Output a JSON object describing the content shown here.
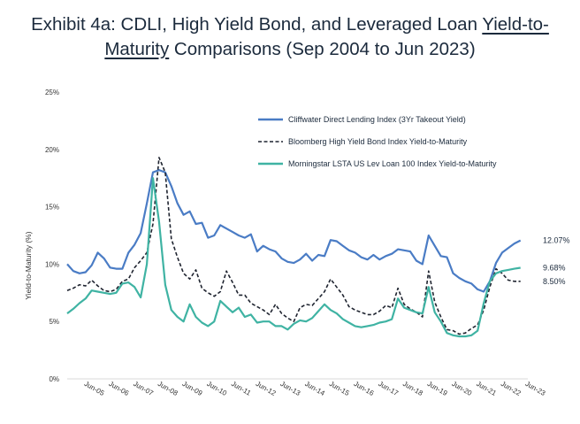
{
  "title": {
    "line1": "Exhibit 4a: CDLI, High Yield Bond, and Leveraged Loan ",
    "line1_link": "Yield-to-",
    "line2_link": "Maturity",
    "line2": " Comparisons (Sep 2004 to Jun 2023)"
  },
  "chart_data": {
    "type": "line",
    "title": "Exhibit 4a: CDLI, High Yield Bond, and Leveraged Loan Yield-to-Maturity Comparisons (Sep 2004 to Jun 2023)",
    "xlabel": "",
    "ylabel": "Yield-to-Maturity (%)",
    "ylim": [
      0,
      25
    ],
    "xlim": [
      2004.7,
      2023.5
    ],
    "yticks": [
      {
        "value": 0,
        "label": "0%"
      },
      {
        "value": 5,
        "label": "5%"
      },
      {
        "value": 10,
        "label": "10%"
      },
      {
        "value": 15,
        "label": "15%"
      },
      {
        "value": 20,
        "label": "20%"
      },
      {
        "value": 25,
        "label": "25%"
      }
    ],
    "xticks": [
      {
        "value": 2005.45,
        "label": "Jun-05"
      },
      {
        "value": 2006.45,
        "label": "Jun-06"
      },
      {
        "value": 2007.45,
        "label": "Jun-07"
      },
      {
        "value": 2008.45,
        "label": "Jun-08"
      },
      {
        "value": 2009.45,
        "label": "Jun-09"
      },
      {
        "value": 2010.45,
        "label": "Jun-10"
      },
      {
        "value": 2011.45,
        "label": "Jun-11"
      },
      {
        "value": 2012.45,
        "label": "Jun-12"
      },
      {
        "value": 2013.45,
        "label": "Jun-13"
      },
      {
        "value": 2014.45,
        "label": "Jun-14"
      },
      {
        "value": 2015.45,
        "label": "Jun-15"
      },
      {
        "value": 2016.45,
        "label": "Jun-16"
      },
      {
        "value": 2017.45,
        "label": "Jun-17"
      },
      {
        "value": 2018.45,
        "label": "Jun-18"
      },
      {
        "value": 2019.45,
        "label": "Jun-19"
      },
      {
        "value": 2020.45,
        "label": "Jun-20"
      },
      {
        "value": 2021.45,
        "label": "Jun-21"
      },
      {
        "value": 2022.45,
        "label": "Jun-22"
      },
      {
        "value": 2023.45,
        "label": "Jun-23"
      }
    ],
    "grid": false,
    "legend_position": "top-right",
    "series": [
      {
        "name": "Cliffwater Direct Lending Index (3Yr Takeout Yield)",
        "color": "#4a7cc5",
        "style": "solid",
        "end_label": "12.07%",
        "points": [
          [
            2004.7,
            10.0
          ],
          [
            2004.95,
            9.4
          ],
          [
            2005.2,
            9.2
          ],
          [
            2005.45,
            9.3
          ],
          [
            2005.7,
            9.9
          ],
          [
            2005.95,
            11.0
          ],
          [
            2006.2,
            10.5
          ],
          [
            2006.45,
            9.7
          ],
          [
            2006.7,
            9.6
          ],
          [
            2006.95,
            9.6
          ],
          [
            2007.2,
            11.0
          ],
          [
            2007.45,
            11.7
          ],
          [
            2007.7,
            12.7
          ],
          [
            2007.95,
            15.3
          ],
          [
            2008.2,
            18.0
          ],
          [
            2008.45,
            18.2
          ],
          [
            2008.7,
            18.0
          ],
          [
            2008.95,
            16.8
          ],
          [
            2009.2,
            15.3
          ],
          [
            2009.45,
            14.3
          ],
          [
            2009.7,
            14.6
          ],
          [
            2009.95,
            13.5
          ],
          [
            2010.2,
            13.6
          ],
          [
            2010.45,
            12.3
          ],
          [
            2010.7,
            12.5
          ],
          [
            2010.95,
            13.4
          ],
          [
            2011.2,
            13.1
          ],
          [
            2011.45,
            12.8
          ],
          [
            2011.7,
            12.5
          ],
          [
            2011.95,
            12.3
          ],
          [
            2012.2,
            12.6
          ],
          [
            2012.45,
            11.1
          ],
          [
            2012.7,
            11.6
          ],
          [
            2012.95,
            11.3
          ],
          [
            2013.2,
            11.1
          ],
          [
            2013.45,
            10.5
          ],
          [
            2013.7,
            10.2
          ],
          [
            2013.95,
            10.1
          ],
          [
            2014.2,
            10.4
          ],
          [
            2014.45,
            10.9
          ],
          [
            2014.7,
            10.3
          ],
          [
            2014.95,
            10.8
          ],
          [
            2015.2,
            10.7
          ],
          [
            2015.45,
            12.1
          ],
          [
            2015.7,
            12.0
          ],
          [
            2015.95,
            11.6
          ],
          [
            2016.2,
            11.2
          ],
          [
            2016.45,
            11.0
          ],
          [
            2016.7,
            10.6
          ],
          [
            2016.95,
            10.4
          ],
          [
            2017.2,
            10.8
          ],
          [
            2017.45,
            10.4
          ],
          [
            2017.7,
            10.7
          ],
          [
            2017.95,
            10.9
          ],
          [
            2018.2,
            11.3
          ],
          [
            2018.45,
            11.2
          ],
          [
            2018.7,
            11.1
          ],
          [
            2018.95,
            10.3
          ],
          [
            2019.2,
            10.0
          ],
          [
            2019.45,
            12.5
          ],
          [
            2019.7,
            11.6
          ],
          [
            2019.95,
            10.7
          ],
          [
            2020.2,
            10.6
          ],
          [
            2020.45,
            9.2
          ],
          [
            2020.7,
            8.8
          ],
          [
            2020.95,
            8.5
          ],
          [
            2021.2,
            8.3
          ],
          [
            2021.45,
            7.8
          ],
          [
            2021.7,
            7.6
          ],
          [
            2021.95,
            8.5
          ],
          [
            2022.2,
            10.1
          ],
          [
            2022.45,
            11.0
          ],
          [
            2022.7,
            11.4
          ],
          [
            2022.95,
            11.8
          ],
          [
            2023.2,
            12.07
          ]
        ]
      },
      {
        "name": "Bloomberg High Yield Bond Index Yield-to-Maturity",
        "color": "#1f2430",
        "style": "dashed",
        "end_label": "8.50%",
        "points": [
          [
            2004.7,
            7.7
          ],
          [
            2004.95,
            7.9
          ],
          [
            2005.2,
            8.2
          ],
          [
            2005.45,
            8.1
          ],
          [
            2005.7,
            8.6
          ],
          [
            2005.95,
            8.1
          ],
          [
            2006.2,
            7.7
          ],
          [
            2006.45,
            7.6
          ],
          [
            2006.7,
            7.8
          ],
          [
            2006.95,
            8.5
          ],
          [
            2007.2,
            8.7
          ],
          [
            2007.45,
            9.7
          ],
          [
            2007.7,
            10.3
          ],
          [
            2007.95,
            11.0
          ],
          [
            2008.2,
            13.5
          ],
          [
            2008.45,
            19.3
          ],
          [
            2008.7,
            18.0
          ],
          [
            2008.95,
            12.2
          ],
          [
            2009.2,
            10.6
          ],
          [
            2009.45,
            9.2
          ],
          [
            2009.7,
            8.7
          ],
          [
            2009.95,
            9.5
          ],
          [
            2010.2,
            7.9
          ],
          [
            2010.45,
            7.5
          ],
          [
            2010.7,
            7.2
          ],
          [
            2010.95,
            7.6
          ],
          [
            2011.2,
            9.4
          ],
          [
            2011.45,
            8.4
          ],
          [
            2011.7,
            7.3
          ],
          [
            2011.95,
            7.3
          ],
          [
            2012.2,
            6.6
          ],
          [
            2012.45,
            6.3
          ],
          [
            2012.7,
            6.0
          ],
          [
            2012.95,
            5.6
          ],
          [
            2013.2,
            6.5
          ],
          [
            2013.45,
            5.7
          ],
          [
            2013.7,
            5.3
          ],
          [
            2013.95,
            5.0
          ],
          [
            2014.2,
            6.2
          ],
          [
            2014.45,
            6.5
          ],
          [
            2014.7,
            6.4
          ],
          [
            2014.95,
            7.0
          ],
          [
            2015.2,
            7.6
          ],
          [
            2015.45,
            8.7
          ],
          [
            2015.7,
            8.0
          ],
          [
            2015.95,
            7.3
          ],
          [
            2016.2,
            6.3
          ],
          [
            2016.45,
            6.0
          ],
          [
            2016.7,
            5.8
          ],
          [
            2016.95,
            5.6
          ],
          [
            2017.2,
            5.6
          ],
          [
            2017.45,
            5.9
          ],
          [
            2017.7,
            6.4
          ],
          [
            2017.95,
            6.2
          ],
          [
            2018.2,
            7.9
          ],
          [
            2018.45,
            6.5
          ],
          [
            2018.7,
            6.1
          ],
          [
            2018.95,
            5.8
          ],
          [
            2019.2,
            5.4
          ],
          [
            2019.45,
            9.4
          ],
          [
            2019.7,
            6.7
          ],
          [
            2019.95,
            5.4
          ],
          [
            2020.2,
            4.3
          ],
          [
            2020.45,
            4.2
          ],
          [
            2020.7,
            3.9
          ],
          [
            2020.95,
            4.0
          ],
          [
            2021.2,
            4.4
          ],
          [
            2021.45,
            4.7
          ],
          [
            2021.7,
            6.0
          ],
          [
            2021.95,
            8.0
          ],
          [
            2022.2,
            9.6
          ],
          [
            2022.45,
            9.2
          ],
          [
            2022.7,
            8.6
          ],
          [
            2022.95,
            8.5
          ],
          [
            2023.2,
            8.5
          ]
        ]
      },
      {
        "name": "Morningstar LSTA US Lev Loan 100 Index Yield-to-Maturity",
        "color": "#3fb3a3",
        "style": "solid",
        "end_label": "9.68%",
        "points": [
          [
            2004.7,
            5.7
          ],
          [
            2004.95,
            6.1
          ],
          [
            2005.2,
            6.6
          ],
          [
            2005.45,
            7.0
          ],
          [
            2005.7,
            7.7
          ],
          [
            2005.95,
            7.6
          ],
          [
            2006.2,
            7.5
          ],
          [
            2006.45,
            7.4
          ],
          [
            2006.7,
            7.5
          ],
          [
            2006.95,
            8.3
          ],
          [
            2007.2,
            8.4
          ],
          [
            2007.45,
            8.0
          ],
          [
            2007.7,
            7.1
          ],
          [
            2007.95,
            10.0
          ],
          [
            2008.2,
            17.5
          ],
          [
            2008.45,
            13.7
          ],
          [
            2008.7,
            8.2
          ],
          [
            2008.95,
            6.0
          ],
          [
            2009.2,
            5.4
          ],
          [
            2009.45,
            5.0
          ],
          [
            2009.7,
            6.5
          ],
          [
            2009.95,
            5.4
          ],
          [
            2010.2,
            4.9
          ],
          [
            2010.45,
            4.6
          ],
          [
            2010.7,
            5.0
          ],
          [
            2010.95,
            6.8
          ],
          [
            2011.2,
            6.3
          ],
          [
            2011.45,
            5.8
          ],
          [
            2011.7,
            6.2
          ],
          [
            2011.95,
            5.4
          ],
          [
            2012.2,
            5.6
          ],
          [
            2012.45,
            4.9
          ],
          [
            2012.7,
            5.0
          ],
          [
            2012.95,
            5.0
          ],
          [
            2013.2,
            4.6
          ],
          [
            2013.45,
            4.6
          ],
          [
            2013.7,
            4.3
          ],
          [
            2013.95,
            4.8
          ],
          [
            2014.2,
            5.1
          ],
          [
            2014.45,
            5.0
          ],
          [
            2014.7,
            5.3
          ],
          [
            2014.95,
            5.9
          ],
          [
            2015.2,
            6.5
          ],
          [
            2015.45,
            6.0
          ],
          [
            2015.7,
            5.7
          ],
          [
            2015.95,
            5.2
          ],
          [
            2016.2,
            4.9
          ],
          [
            2016.45,
            4.6
          ],
          [
            2016.7,
            4.5
          ],
          [
            2016.95,
            4.6
          ],
          [
            2017.2,
            4.7
          ],
          [
            2017.45,
            4.9
          ],
          [
            2017.7,
            5.0
          ],
          [
            2017.95,
            5.2
          ],
          [
            2018.2,
            7.0
          ],
          [
            2018.45,
            6.2
          ],
          [
            2018.7,
            6.0
          ],
          [
            2018.95,
            5.8
          ],
          [
            2019.2,
            5.7
          ],
          [
            2019.45,
            8.0
          ],
          [
            2019.7,
            5.8
          ],
          [
            2019.95,
            5.0
          ],
          [
            2020.2,
            4.0
          ],
          [
            2020.45,
            3.8
          ],
          [
            2020.7,
            3.7
          ],
          [
            2020.95,
            3.7
          ],
          [
            2021.2,
            3.8
          ],
          [
            2021.45,
            4.2
          ],
          [
            2021.7,
            6.6
          ],
          [
            2021.95,
            8.5
          ],
          [
            2022.2,
            9.2
          ],
          [
            2022.45,
            9.4
          ],
          [
            2022.7,
            9.5
          ],
          [
            2022.95,
            9.6
          ],
          [
            2023.2,
            9.68
          ]
        ]
      }
    ]
  }
}
